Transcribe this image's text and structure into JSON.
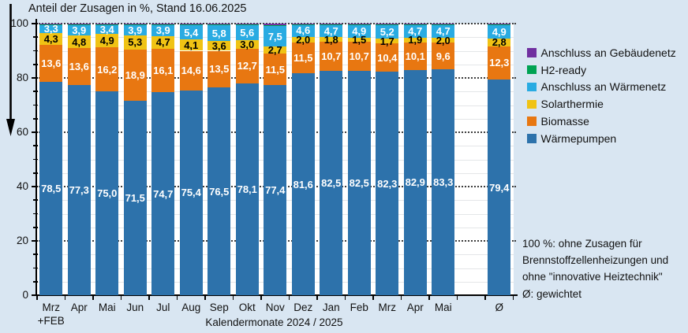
{
  "colors": {
    "background": "#d9e6f2",
    "plot_background": "#ffffff",
    "axis": "#000000",
    "major_gridline": "#3d3d3d",
    "minor_gridline": "#e4e6e8"
  },
  "footnote_lines": [
    "100 %: ohne Zusagen für",
    "Brennstoffzellenheizungen und",
    "ohne \"innovative Heiztechnik\"",
    "Ø: gewichtet"
  ],
  "legend": {
    "position": "right",
    "items": [
      {
        "label": "Anschluss an Gebäudenetz",
        "color": "#7030a0"
      },
      {
        "label": "H2-ready",
        "color": "#00a353"
      },
      {
        "label": "Anschluss an Wärmenetz",
        "color": "#29abe2"
      },
      {
        "label": "Solarthermie",
        "color": "#f0c314"
      },
      {
        "label": "Biomasse",
        "color": "#e87711"
      },
      {
        "label": "Wärmepumpen",
        "color": "#2d72ab"
      }
    ]
  },
  "chart_data": {
    "type": "bar",
    "stacked": true,
    "title": "Anteil der Zusagen in %, Stand 16.06.2025",
    "xlabel": "Kalendermonate 2024 / 2025",
    "ylim": [
      0,
      100
    ],
    "yticks": [
      0,
      20,
      40,
      60,
      80,
      100
    ],
    "minor_tick_step": 5,
    "grid": true,
    "categories": [
      "Mrz",
      "Apr",
      "Mai",
      "Jun",
      "Jul",
      "Aug",
      "Sep",
      "Okt",
      "Nov",
      "Dez",
      "Jan",
      "Feb",
      "Mrz",
      "Apr",
      "Mai",
      "Ø"
    ],
    "first_category_sublabel": "+FEB",
    "average_column_index": 15,
    "gap_before_average": true,
    "series": [
      {
        "name": "Wärmepumpen",
        "color": "#2d72ab",
        "label_color": "#ffffff",
        "values": [
          78.5,
          77.3,
          75.0,
          71.5,
          74.7,
          75.4,
          76.5,
          78.1,
          77.4,
          81.6,
          82.5,
          82.5,
          82.3,
          82.9,
          83.3,
          79.4
        ],
        "labels": [
          "78,5",
          "77,3",
          "75,0",
          "71,5",
          "74,7",
          "75,4",
          "76,5",
          "78,1",
          "77,4",
          "81,6",
          "82,5",
          "82,5",
          "82,3",
          "82,9",
          "83,3",
          "79,4"
        ]
      },
      {
        "name": "Biomasse",
        "color": "#e87711",
        "label_color": "#ffffff",
        "values": [
          13.6,
          13.6,
          16.2,
          18.9,
          16.1,
          14.6,
          13.5,
          12.7,
          11.5,
          11.5,
          10.7,
          10.7,
          10.4,
          10.1,
          9.6,
          12.3
        ],
        "labels": [
          "13,6",
          "13,6",
          "16,2",
          "18,9",
          "16,1",
          "14,6",
          "13,5",
          "12,7",
          "11,5",
          "11,5",
          "10,7",
          "10,7",
          "10,4",
          "10,1",
          "9,6",
          "12,3"
        ]
      },
      {
        "name": "Solarthermie",
        "color": "#f0c314",
        "label_color": "#000000",
        "values": [
          4.3,
          4.8,
          4.9,
          5.3,
          4.7,
          4.1,
          3.6,
          3.0,
          2.7,
          2.0,
          1.8,
          1.5,
          1.7,
          1.9,
          2.0,
          2.8
        ],
        "labels": [
          "4,3",
          "4,8",
          "4,9",
          "5,3",
          "4,7",
          "4,1",
          "3,6",
          "3,0",
          "2,7",
          "2,0",
          "1,8",
          "1,5",
          "1,7",
          "1,9",
          "2,0",
          "2,8"
        ]
      },
      {
        "name": "Anschluss an Wärmenetz",
        "color": "#29abe2",
        "label_color": "#ffffff",
        "values": [
          3.3,
          3.9,
          3.4,
          3.9,
          3.9,
          5.4,
          5.8,
          5.6,
          7.5,
          4.6,
          4.7,
          4.9,
          5.2,
          4.7,
          4.7,
          4.9
        ],
        "labels": [
          "3,3",
          "3,9",
          "3,4",
          "3,9",
          "3,9",
          "5,4",
          "5,8",
          "5,6",
          "7,5",
          "4,6",
          "4,7",
          "4,9",
          "5,2",
          "4,7",
          "4,7",
          "4,9"
        ]
      },
      {
        "name": "H2-ready",
        "color": "#00a353",
        "label_color": null,
        "values": [
          0.1,
          0.15,
          0.2,
          0.15,
          0.2,
          0.15,
          0.2,
          0.2,
          0.3,
          0.1,
          0.1,
          0.15,
          0.15,
          0.15,
          0.15,
          0.2
        ],
        "labels": null
      },
      {
        "name": "Anschluss an Gebäudenetz",
        "color": "#7030a0",
        "label_color": null,
        "values": [
          0.2,
          0.25,
          0.3,
          0.25,
          0.4,
          0.35,
          0.4,
          0.4,
          0.6,
          0.2,
          0.2,
          0.25,
          0.25,
          0.25,
          0.25,
          0.4
        ],
        "labels": null
      }
    ]
  }
}
